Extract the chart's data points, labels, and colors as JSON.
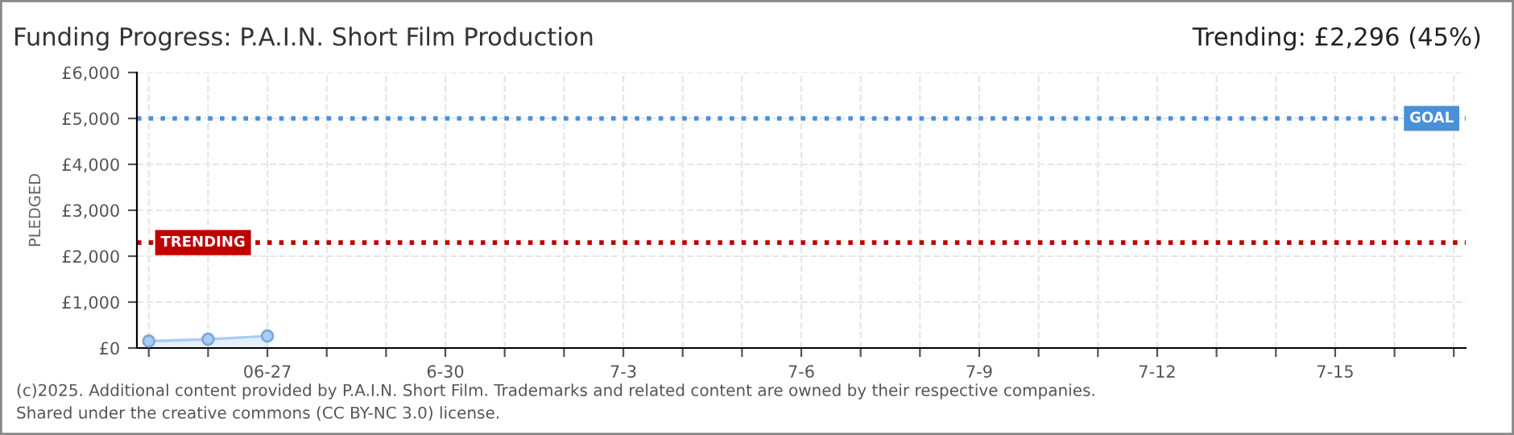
{
  "chart_data": {
    "type": "area",
    "title": "Funding Progress: P.A.I.N. Short Film Production",
    "subtitle": "Trending: £2,296 (45%)",
    "ylabel": "PLEDGED",
    "categories": [
      null,
      null,
      "06-27",
      null,
      null,
      "6-30",
      null,
      null,
      "7-3",
      null,
      null,
      "7-6",
      null,
      null,
      "7-9",
      null,
      null,
      "7-12",
      null,
      null,
      "7-15",
      null,
      null
    ],
    "series": [
      {
        "color": "#a9cdf5",
        "values": [
          150,
          190,
          260,
          null,
          null,
          null,
          null,
          null,
          null,
          null,
          null,
          null,
          null,
          null,
          null,
          null,
          null,
          null,
          null,
          null,
          null,
          null,
          null
        ]
      }
    ],
    "ylim": [
      0,
      6000
    ],
    "yticks": [
      {
        "value": 0,
        "label": "£0"
      },
      {
        "value": 1000,
        "label": "£1,000"
      },
      {
        "value": 2000,
        "label": "£2,000"
      },
      {
        "value": 3000,
        "label": "£3,000"
      },
      {
        "value": 4000,
        "label": "£4,000"
      },
      {
        "value": 5000,
        "label": "£5,000"
      },
      {
        "value": 6000,
        "label": "£6,000"
      }
    ],
    "ref_lines": [
      {
        "axis": "y",
        "value": 5000,
        "label": "GOAL",
        "color": "#4a90d9",
        "line_style": "dotted"
      },
      {
        "axis": "y",
        "value": 2296,
        "label": "TRENDING",
        "color": "#c00000",
        "line_style": "dotted"
      }
    ],
    "annotations": [
      "(c)2025. Additional content provided by P.A.I.N. Short Film. Trademarks and related content are owned by their respective companies.",
      "Shared under the creative commons (CC BY-NC 3.0) license."
    ],
    "grid": true,
    "marker": "circle",
    "legend": false
  }
}
